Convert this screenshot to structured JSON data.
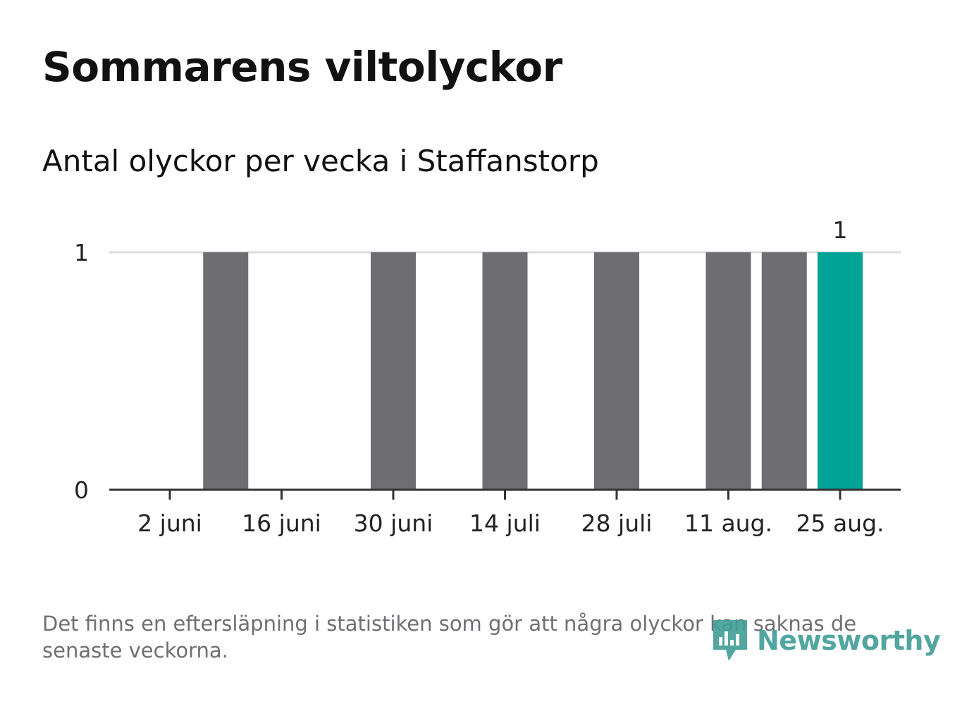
{
  "title": "Sommarens viltolyckor",
  "subtitle": "Antal olyckor per vecka i Staffanstorp",
  "footnote": "Det finns en eftersläpning i statistiken som gör att några olyckor kan saknas de senaste veckorna.",
  "brand": {
    "name": "Newsworthy",
    "icon": "bar-chart-logo-icon",
    "color": "#3f9d96"
  },
  "colors": {
    "bar": "#6e6d72",
    "highlight": "#00a396",
    "grid": "#dcdcdc",
    "axis": "#333333",
    "text": "#222222"
  },
  "chart_data": {
    "type": "bar",
    "title": "",
    "xlabel": "",
    "ylabel": "",
    "ylim": [
      0,
      1
    ],
    "yticks": [
      0,
      1
    ],
    "grid": true,
    "categories": [
      "2 juni",
      "9 juni",
      "16 juni",
      "23 juni",
      "30 juni",
      "7 juli",
      "14 juli",
      "21 juli",
      "28 juli",
      "4 aug.",
      "11 aug.",
      "18 aug.",
      "25 aug."
    ],
    "x_tick_labels": [
      "2 juni",
      "16 juni",
      "30 juni",
      "14 juli",
      "28 juli",
      "11 aug.",
      "25 aug."
    ],
    "values": [
      0,
      1,
      0,
      0,
      1,
      0,
      1,
      0,
      1,
      0,
      1,
      1,
      1
    ],
    "highlight_last": true,
    "data_labels": [
      {
        "category": "25 aug.",
        "text": "1"
      }
    ]
  }
}
